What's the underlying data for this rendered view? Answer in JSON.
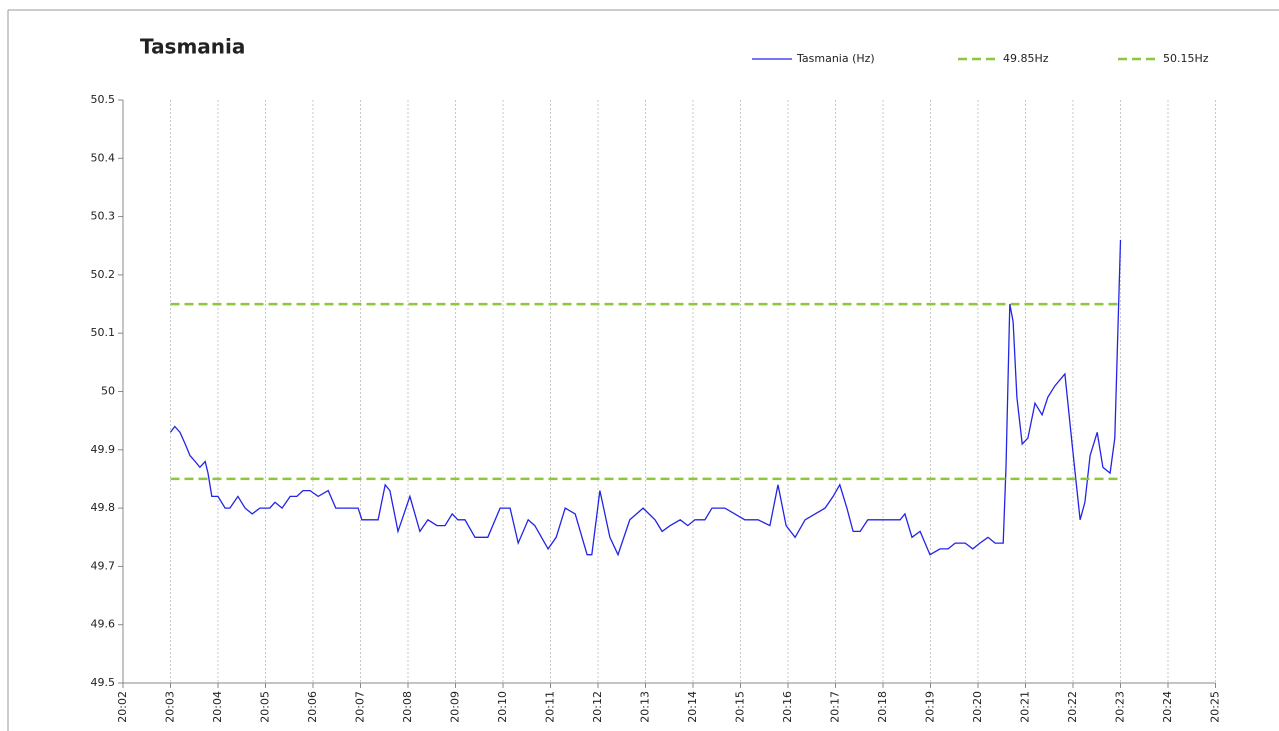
{
  "chart_data": {
    "type": "line",
    "title": "Tasmania",
    "xlim": [
      2,
      25
    ],
    "xticks": [
      {
        "value": 2,
        "label": "20:02"
      },
      {
        "value": 3,
        "label": "20:03"
      },
      {
        "value": 4,
        "label": "20:04"
      },
      {
        "value": 5,
        "label": "20:05"
      },
      {
        "value": 6,
        "label": "20:06"
      },
      {
        "value": 7,
        "label": "20:07"
      },
      {
        "value": 8,
        "label": "20:08"
      },
      {
        "value": 9,
        "label": "20:09"
      },
      {
        "value": 10,
        "label": "20:10"
      },
      {
        "value": 11,
        "label": "20:11"
      },
      {
        "value": 12,
        "label": "20:12"
      },
      {
        "value": 13,
        "label": "20:13"
      },
      {
        "value": 14,
        "label": "20:14"
      },
      {
        "value": 15,
        "label": "20:15"
      },
      {
        "value": 16,
        "label": "20:16"
      },
      {
        "value": 17,
        "label": "20:17"
      },
      {
        "value": 18,
        "label": "20:18"
      },
      {
        "value": 19,
        "label": "20:19"
      },
      {
        "value": 20,
        "label": "20:20"
      },
      {
        "value": 21,
        "label": "20:21"
      },
      {
        "value": 22,
        "label": "20:22"
      },
      {
        "value": 23,
        "label": "20:23"
      },
      {
        "value": 24,
        "label": "20:24"
      },
      {
        "value": 25,
        "label": "20:25"
      }
    ],
    "ylim": [
      49.5,
      50.5
    ],
    "yticks": [
      49.5,
      49.6,
      49.7,
      49.8,
      49.9,
      50,
      50.1,
      50.2,
      50.3,
      50.4,
      50.5
    ],
    "grid": "x",
    "legend": "top-right",
    "series": [
      {
        "name": "Tasmania (Hz)",
        "color": "#2424e6",
        "dashed": false,
        "x": [
          3.0,
          3.09,
          3.2,
          3.31,
          3.41,
          3.52,
          3.62,
          3.73,
          3.79,
          3.87,
          4.0,
          4.15,
          4.25,
          4.42,
          4.57,
          4.72,
          4.88,
          5.09,
          5.2,
          5.35,
          5.52,
          5.66,
          5.79,
          5.94,
          6.11,
          6.32,
          6.48,
          6.65,
          6.78,
          6.95,
          7.03,
          7.2,
          7.37,
          7.52,
          7.62,
          7.79,
          8.04,
          8.25,
          8.42,
          8.61,
          8.78,
          8.93,
          9.05,
          9.2,
          9.41,
          9.68,
          9.94,
          10.15,
          10.32,
          10.53,
          10.67,
          10.95,
          11.12,
          11.31,
          11.52,
          11.77,
          11.87,
          12.04,
          12.25,
          12.42,
          12.67,
          12.95,
          13.2,
          13.35,
          13.52,
          13.73,
          13.89,
          14.04,
          14.25,
          14.4,
          14.67,
          14.88,
          15.09,
          15.37,
          15.62,
          15.79,
          15.96,
          16.15,
          16.36,
          16.57,
          16.78,
          16.95,
          17.09,
          17.24,
          17.37,
          17.52,
          17.68,
          17.89,
          18.15,
          18.36,
          18.46,
          18.61,
          18.78,
          18.99,
          19.2,
          19.37,
          19.52,
          19.73,
          19.89,
          20.04,
          20.21,
          20.36,
          20.53,
          20.59,
          20.67,
          20.74,
          20.82,
          20.93,
          21.05,
          21.2,
          21.35,
          21.47,
          21.62,
          21.83,
          21.98,
          22.15,
          22.25,
          22.36,
          22.51,
          22.63,
          22.78,
          22.88,
          23.0
        ],
        "values": [
          49.93,
          49.94,
          49.93,
          49.91,
          49.89,
          49.88,
          49.87,
          49.88,
          49.86,
          49.82,
          49.82,
          49.8,
          49.8,
          49.82,
          49.8,
          49.79,
          49.8,
          49.8,
          49.81,
          49.8,
          49.82,
          49.82,
          49.83,
          49.83,
          49.82,
          49.83,
          49.8,
          49.8,
          49.8,
          49.8,
          49.78,
          49.78,
          49.78,
          49.84,
          49.83,
          49.76,
          49.82,
          49.76,
          49.78,
          49.77,
          49.77,
          49.79,
          49.78,
          49.78,
          49.75,
          49.75,
          49.8,
          49.8,
          49.74,
          49.78,
          49.77,
          49.73,
          49.75,
          49.8,
          49.79,
          49.72,
          49.72,
          49.83,
          49.75,
          49.72,
          49.78,
          49.8,
          49.78,
          49.76,
          49.77,
          49.78,
          49.77,
          49.78,
          49.78,
          49.8,
          49.8,
          49.79,
          49.78,
          49.78,
          49.77,
          49.84,
          49.77,
          49.75,
          49.78,
          49.79,
          49.8,
          49.82,
          49.84,
          49.8,
          49.76,
          49.76,
          49.78,
          49.78,
          49.78,
          49.78,
          49.79,
          49.75,
          49.76,
          49.72,
          49.73,
          49.73,
          49.74,
          49.74,
          49.73,
          49.74,
          49.75,
          49.74,
          49.74,
          49.87,
          50.15,
          50.12,
          49.99,
          49.91,
          49.92,
          49.98,
          49.96,
          49.99,
          50.01,
          50.03,
          49.91,
          49.78,
          49.81,
          49.89,
          49.93,
          49.87,
          49.86,
          49.92,
          50.26
        ]
      },
      {
        "name": "49.85Hz",
        "color": "#8dc63f",
        "dashed": true,
        "x": [
          3,
          23
        ],
        "values": [
          49.85,
          49.85
        ]
      },
      {
        "name": "50.15Hz",
        "color": "#8dc63f",
        "dashed": true,
        "x": [
          3,
          23
        ],
        "values": [
          50.15,
          50.15
        ]
      }
    ]
  }
}
